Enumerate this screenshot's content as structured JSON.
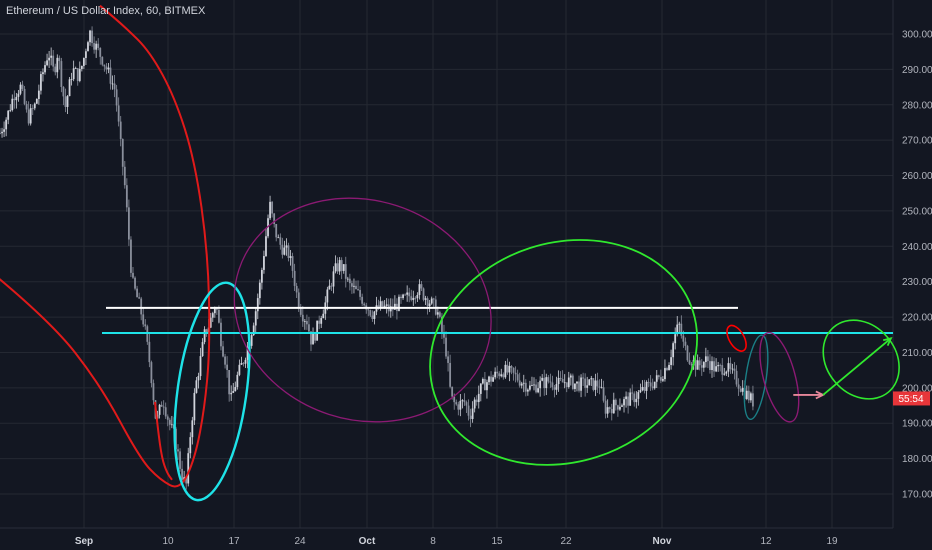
{
  "chart_title": "Ethereum / US Dollar Index, 60, BITMEX",
  "colors": {
    "background": "#131722",
    "grid": "#242832",
    "candle_up": "#d1d4dc",
    "candle_down": "#8a8f9c",
    "red_curve": "#e01a1a",
    "cyan": "#1ee3e8",
    "white": "#ffffff",
    "green": "#30e82e",
    "purple": "#8b1a73",
    "teal": "#1a7f86",
    "price_tag": "#e8363a",
    "arrow_pink": "#e6879a"
  },
  "chart_data": {
    "type": "candlestick",
    "y_range": [
      162,
      306
    ],
    "y_ticks": [
      "300.00",
      "290.00",
      "280.00",
      "270.00",
      "260.00",
      "250.00",
      "240.00",
      "230.00",
      "220.00",
      "210.00",
      "200.00",
      "190.00",
      "180.00",
      "170.00"
    ],
    "x_ticks": [
      "Sep",
      "10",
      "17",
      "24",
      "Oct",
      "8",
      "15",
      "22",
      "Nov",
      "12",
      "19"
    ],
    "x_ticks_bold": [
      "Sep",
      "Oct",
      "Nov"
    ],
    "current_price_label": "55:54",
    "horizontal_levels": [
      {
        "name": "white-level",
        "value": 222.6,
        "color": "white"
      },
      {
        "name": "cyan-level",
        "value": 215.5,
        "color": "cyan"
      }
    ],
    "series_anchors": [
      [
        0,
        272
      ],
      [
        0.008,
        277
      ],
      [
        0.015,
        283
      ],
      [
        0.022,
        285
      ],
      [
        0.03,
        276
      ],
      [
        0.038,
        280
      ],
      [
        0.045,
        288
      ],
      [
        0.052,
        295
      ],
      [
        0.058,
        289
      ],
      [
        0.062,
        295
      ],
      [
        0.07,
        279
      ],
      [
        0.078,
        290
      ],
      [
        0.085,
        288
      ],
      [
        0.09,
        293
      ],
      [
        0.096,
        301
      ],
      [
        0.102,
        297
      ],
      [
        0.11,
        293
      ],
      [
        0.118,
        288
      ],
      [
        0.124,
        284
      ],
      [
        0.128,
        273
      ],
      [
        0.135,
        255
      ],
      [
        0.142,
        230
      ],
      [
        0.148,
        225
      ],
      [
        0.155,
        218
      ],
      [
        0.162,
        205
      ],
      [
        0.168,
        190
      ],
      [
        0.175,
        197
      ],
      [
        0.182,
        190
      ],
      [
        0.188,
        186
      ],
      [
        0.195,
        176
      ],
      [
        0.2,
        172
      ],
      [
        0.205,
        188
      ],
      [
        0.21,
        200
      ],
      [
        0.215,
        207
      ],
      [
        0.22,
        215
      ],
      [
        0.225,
        218
      ],
      [
        0.232,
        224
      ],
      [
        0.238,
        213
      ],
      [
        0.243,
        207
      ],
      [
        0.248,
        196
      ],
      [
        0.255,
        203
      ],
      [
        0.262,
        208
      ],
      [
        0.268,
        213
      ],
      [
        0.275,
        222
      ],
      [
        0.28,
        230
      ],
      [
        0.286,
        243
      ],
      [
        0.29,
        252
      ],
      [
        0.295,
        245
      ],
      [
        0.3,
        241
      ],
      [
        0.305,
        239
      ],
      [
        0.31,
        238
      ],
      [
        0.315,
        233
      ],
      [
        0.32,
        225
      ],
      [
        0.325,
        221
      ],
      [
        0.33,
        219
      ],
      [
        0.335,
        213
      ],
      [
        0.34,
        216
      ],
      [
        0.345,
        221
      ],
      [
        0.35,
        224
      ],
      [
        0.355,
        229
      ],
      [
        0.36,
        233
      ],
      [
        0.365,
        235
      ],
      [
        0.37,
        233
      ],
      [
        0.375,
        229
      ],
      [
        0.38,
        228
      ],
      [
        0.39,
        225
      ],
      [
        0.4,
        221
      ],
      [
        0.41,
        223
      ],
      [
        0.42,
        222
      ],
      [
        0.43,
        224
      ],
      [
        0.44,
        226
      ],
      [
        0.45,
        228
      ],
      [
        0.46,
        225
      ],
      [
        0.47,
        222
      ],
      [
        0.48,
        210
      ],
      [
        0.485,
        197
      ],
      [
        0.49,
        195
      ],
      [
        0.5,
        196
      ],
      [
        0.505,
        192
      ],
      [
        0.51,
        196
      ],
      [
        0.52,
        201
      ],
      [
        0.53,
        203
      ],
      [
        0.54,
        205
      ],
      [
        0.55,
        204
      ],
      [
        0.56,
        202
      ],
      [
        0.57,
        200
      ],
      [
        0.58,
        201
      ],
      [
        0.59,
        202
      ],
      [
        0.6,
        201
      ],
      [
        0.61,
        202
      ],
      [
        0.62,
        201
      ],
      [
        0.63,
        201
      ],
      [
        0.64,
        201
      ],
      [
        0.645,
        201
      ],
      [
        0.65,
        194
      ],
      [
        0.66,
        195
      ],
      [
        0.67,
        196
      ],
      [
        0.68,
        197
      ],
      [
        0.69,
        199
      ],
      [
        0.7,
        201
      ],
      [
        0.71,
        203
      ],
      [
        0.72,
        208
      ],
      [
        0.725,
        214
      ],
      [
        0.73,
        218
      ],
      [
        0.735,
        212
      ],
      [
        0.74,
        209
      ],
      [
        0.75,
        206
      ],
      [
        0.76,
        208
      ],
      [
        0.77,
        205
      ],
      [
        0.78,
        206
      ],
      [
        0.79,
        203
      ],
      [
        0.8,
        199
      ],
      [
        0.81,
        196
      ]
    ],
    "last_index_fraction": 0.81
  },
  "annotations": {
    "red_curve": [
      [
        -10,
        233
      ],
      [
        50,
        219
      ],
      [
        100,
        201
      ],
      [
        140,
        180
      ],
      [
        160,
        174
      ],
      [
        180,
        171
      ],
      [
        195,
        180
      ],
      [
        205,
        195
      ],
      [
        210,
        212
      ],
      [
        208,
        238
      ],
      [
        195,
        264
      ],
      [
        175,
        282
      ],
      [
        150,
        295
      ],
      [
        125,
        302
      ],
      [
        100,
        308
      ]
    ],
    "red_arc_small": [
      [
        155,
        196
      ],
      [
        158,
        188
      ],
      [
        162,
        180
      ],
      [
        167,
        176
      ],
      [
        172,
        174
      ]
    ],
    "ellipses": [
      {
        "name": "cyan-ellipse",
        "cx_date": 0.228,
        "cy_price": 199,
        "rx_frac": 0.037,
        "ry_price": 31,
        "rot": 8,
        "color": "cyan",
        "width": 2.4
      },
      {
        "name": "purple-ellipse-large",
        "cx_date": 0.39,
        "cy_price": 222,
        "rx_frac": 0.14,
        "ry_price": 31,
        "rot": 18,
        "color": "purple",
        "width": 1.3
      },
      {
        "name": "green-ellipse-large",
        "cx_date": 0.606,
        "cy_price": 210,
        "rx_frac": 0.146,
        "ry_price": 31,
        "rot": -18,
        "color": "green",
        "width": 1.8
      },
      {
        "name": "red-ellipse-small",
        "cx_date": 0.792,
        "cy_price": 214,
        "rx_frac": 0.008,
        "ry_price": 4,
        "rot": -30,
        "color": "red",
        "width": 1.6
      },
      {
        "name": "teal-ellipse-small",
        "cx_date": 0.813,
        "cy_price": 203,
        "rx_frac": 0.011,
        "ry_price": 12,
        "rot": 8,
        "color": "teal",
        "width": 1.4
      },
      {
        "name": "purple-ellipse-small",
        "cx_date": 0.838,
        "cy_price": 203,
        "rx_frac": 0.017,
        "ry_price": 13,
        "rot": -15,
        "color": "purple",
        "width": 1.4
      },
      {
        "name": "green-ellipse-small",
        "cx_date": 0.926,
        "cy_price": 208,
        "rx_frac": 0.037,
        "ry_price": 12,
        "rot": -40,
        "color": "green",
        "width": 1.6
      }
    ],
    "arrows": [
      {
        "name": "pink-arrow",
        "from": [
          0.853,
          198
        ],
        "to": [
          0.885,
          198
        ],
        "color": "arrow_pink"
      },
      {
        "name": "green-arrow",
        "from": [
          0.885,
          198
        ],
        "to": [
          0.958,
          214
        ],
        "color": "green"
      }
    ]
  }
}
